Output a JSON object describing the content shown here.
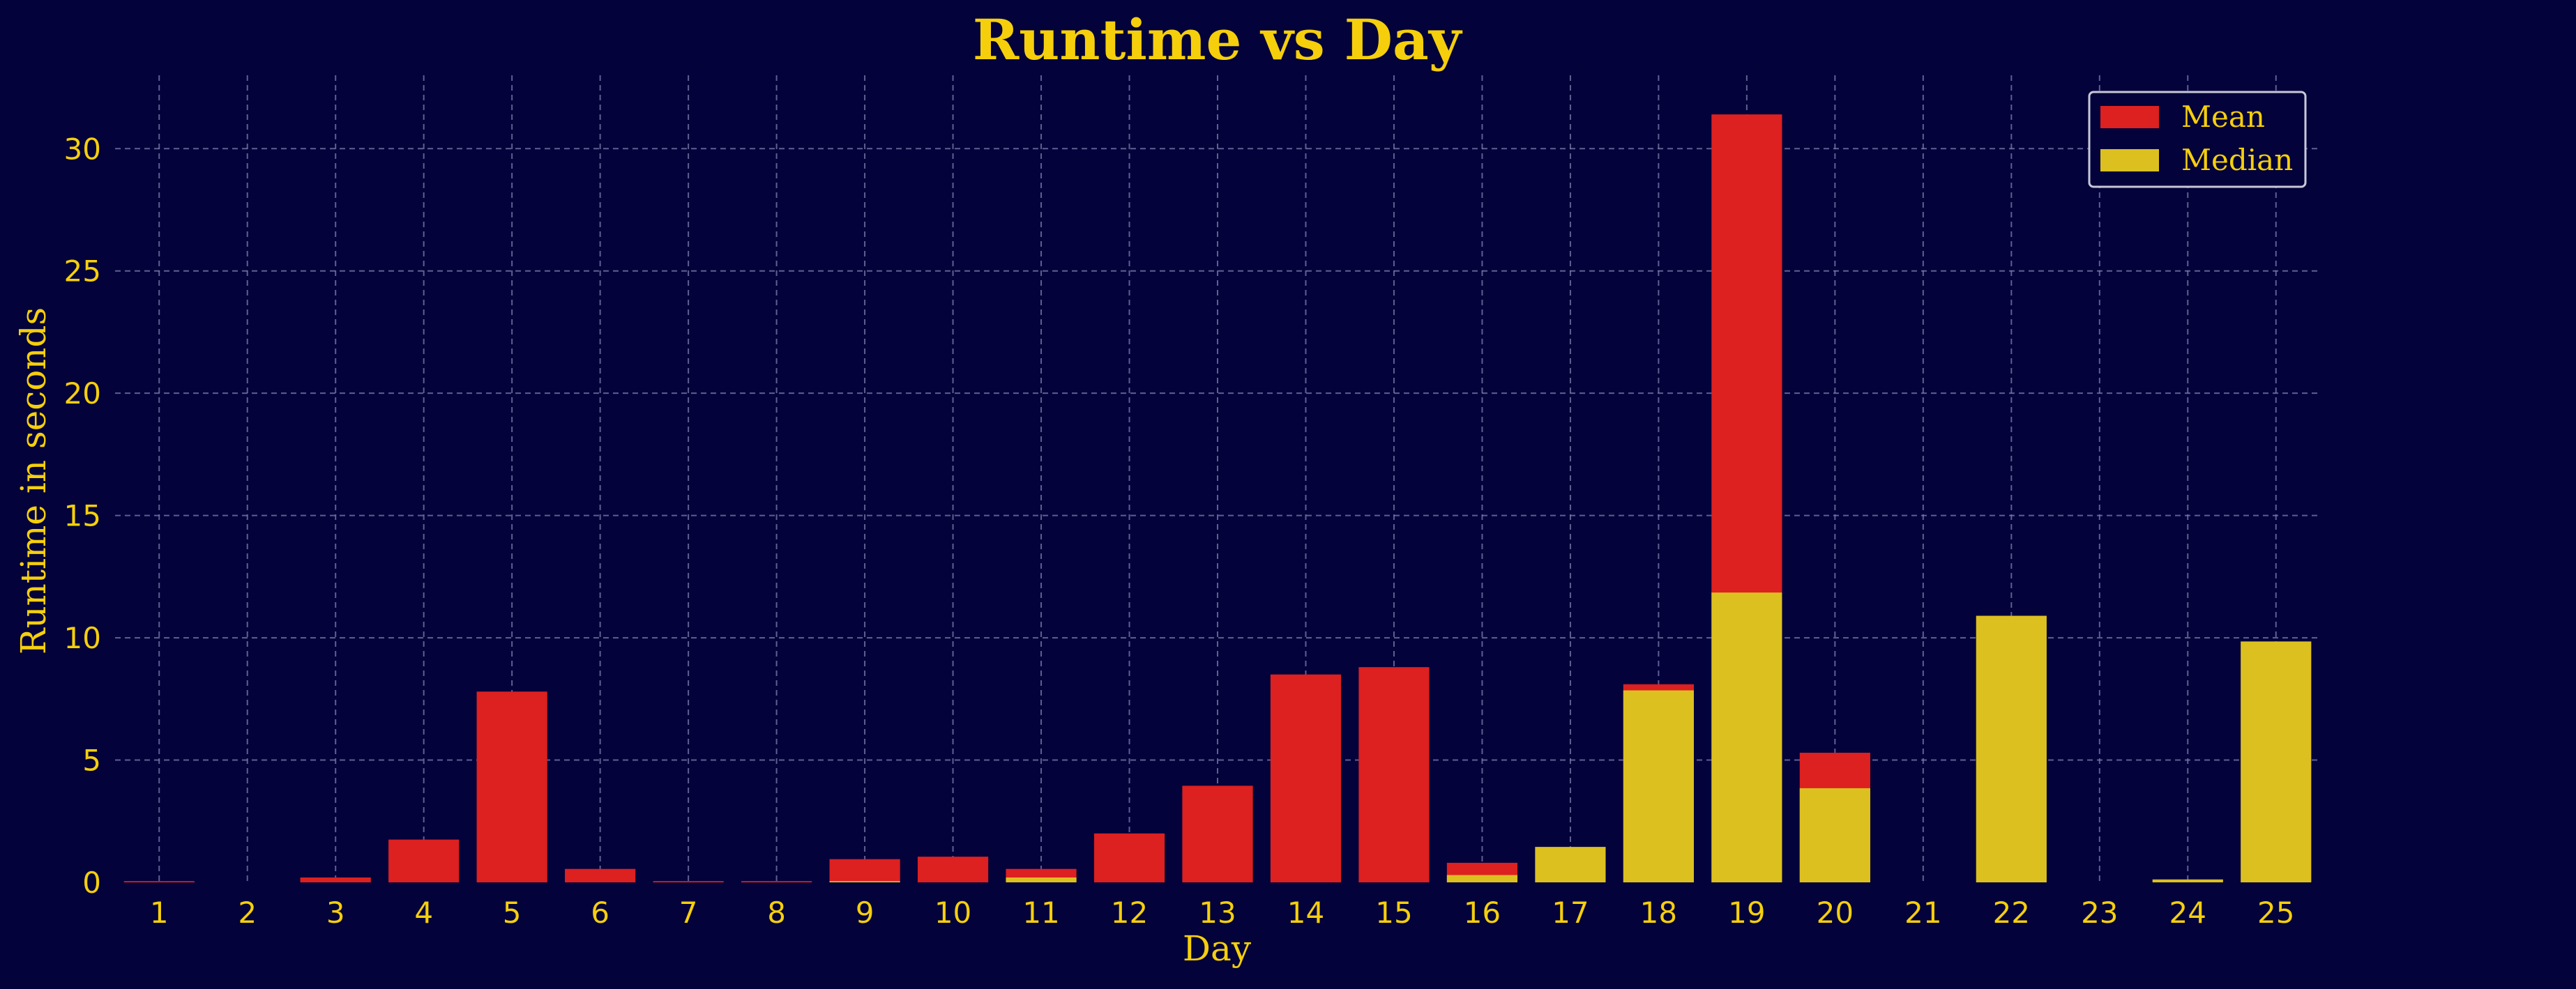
{
  "chart_data": {
    "type": "bar",
    "title": "Runtime vs Day",
    "xlabel": "Day",
    "ylabel": "Runtime in seconds",
    "categories": [
      "1",
      "2",
      "3",
      "4",
      "5",
      "6",
      "7",
      "8",
      "9",
      "10",
      "11",
      "12",
      "13",
      "14",
      "15",
      "16",
      "17",
      "18",
      "19",
      "20",
      "21",
      "22",
      "23",
      "24",
      "25"
    ],
    "series": [
      {
        "name": "Mean",
        "color": "#dd2020",
        "values": [
          0.05,
          0,
          0.2,
          1.75,
          7.8,
          0.55,
          0.05,
          0.05,
          0.95,
          1.05,
          0.55,
          2.0,
          3.95,
          8.5,
          8.8,
          0.8,
          0,
          8.1,
          31.4,
          5.3,
          0,
          0,
          0,
          0,
          0
        ]
      },
      {
        "name": "Median",
        "color": "#dcc020",
        "values": [
          0,
          0,
          0,
          0,
          0,
          0,
          0,
          0,
          0.05,
          0,
          0.2,
          0,
          0,
          0,
          0,
          0.3,
          1.45,
          7.85,
          11.85,
          3.85,
          0,
          10.9,
          0,
          0.12,
          9.85
        ]
      }
    ],
    "ylim": [
      0,
      33
    ],
    "yticks": [
      "0",
      "5",
      "10",
      "15",
      "20",
      "25",
      "30"
    ],
    "grid": true,
    "legend_position": "top-right",
    "colors": {
      "background": "#03023a",
      "text": "#f5cf0c",
      "grid": "#7f7fae",
      "legend_border": "#c8c8d8"
    }
  }
}
